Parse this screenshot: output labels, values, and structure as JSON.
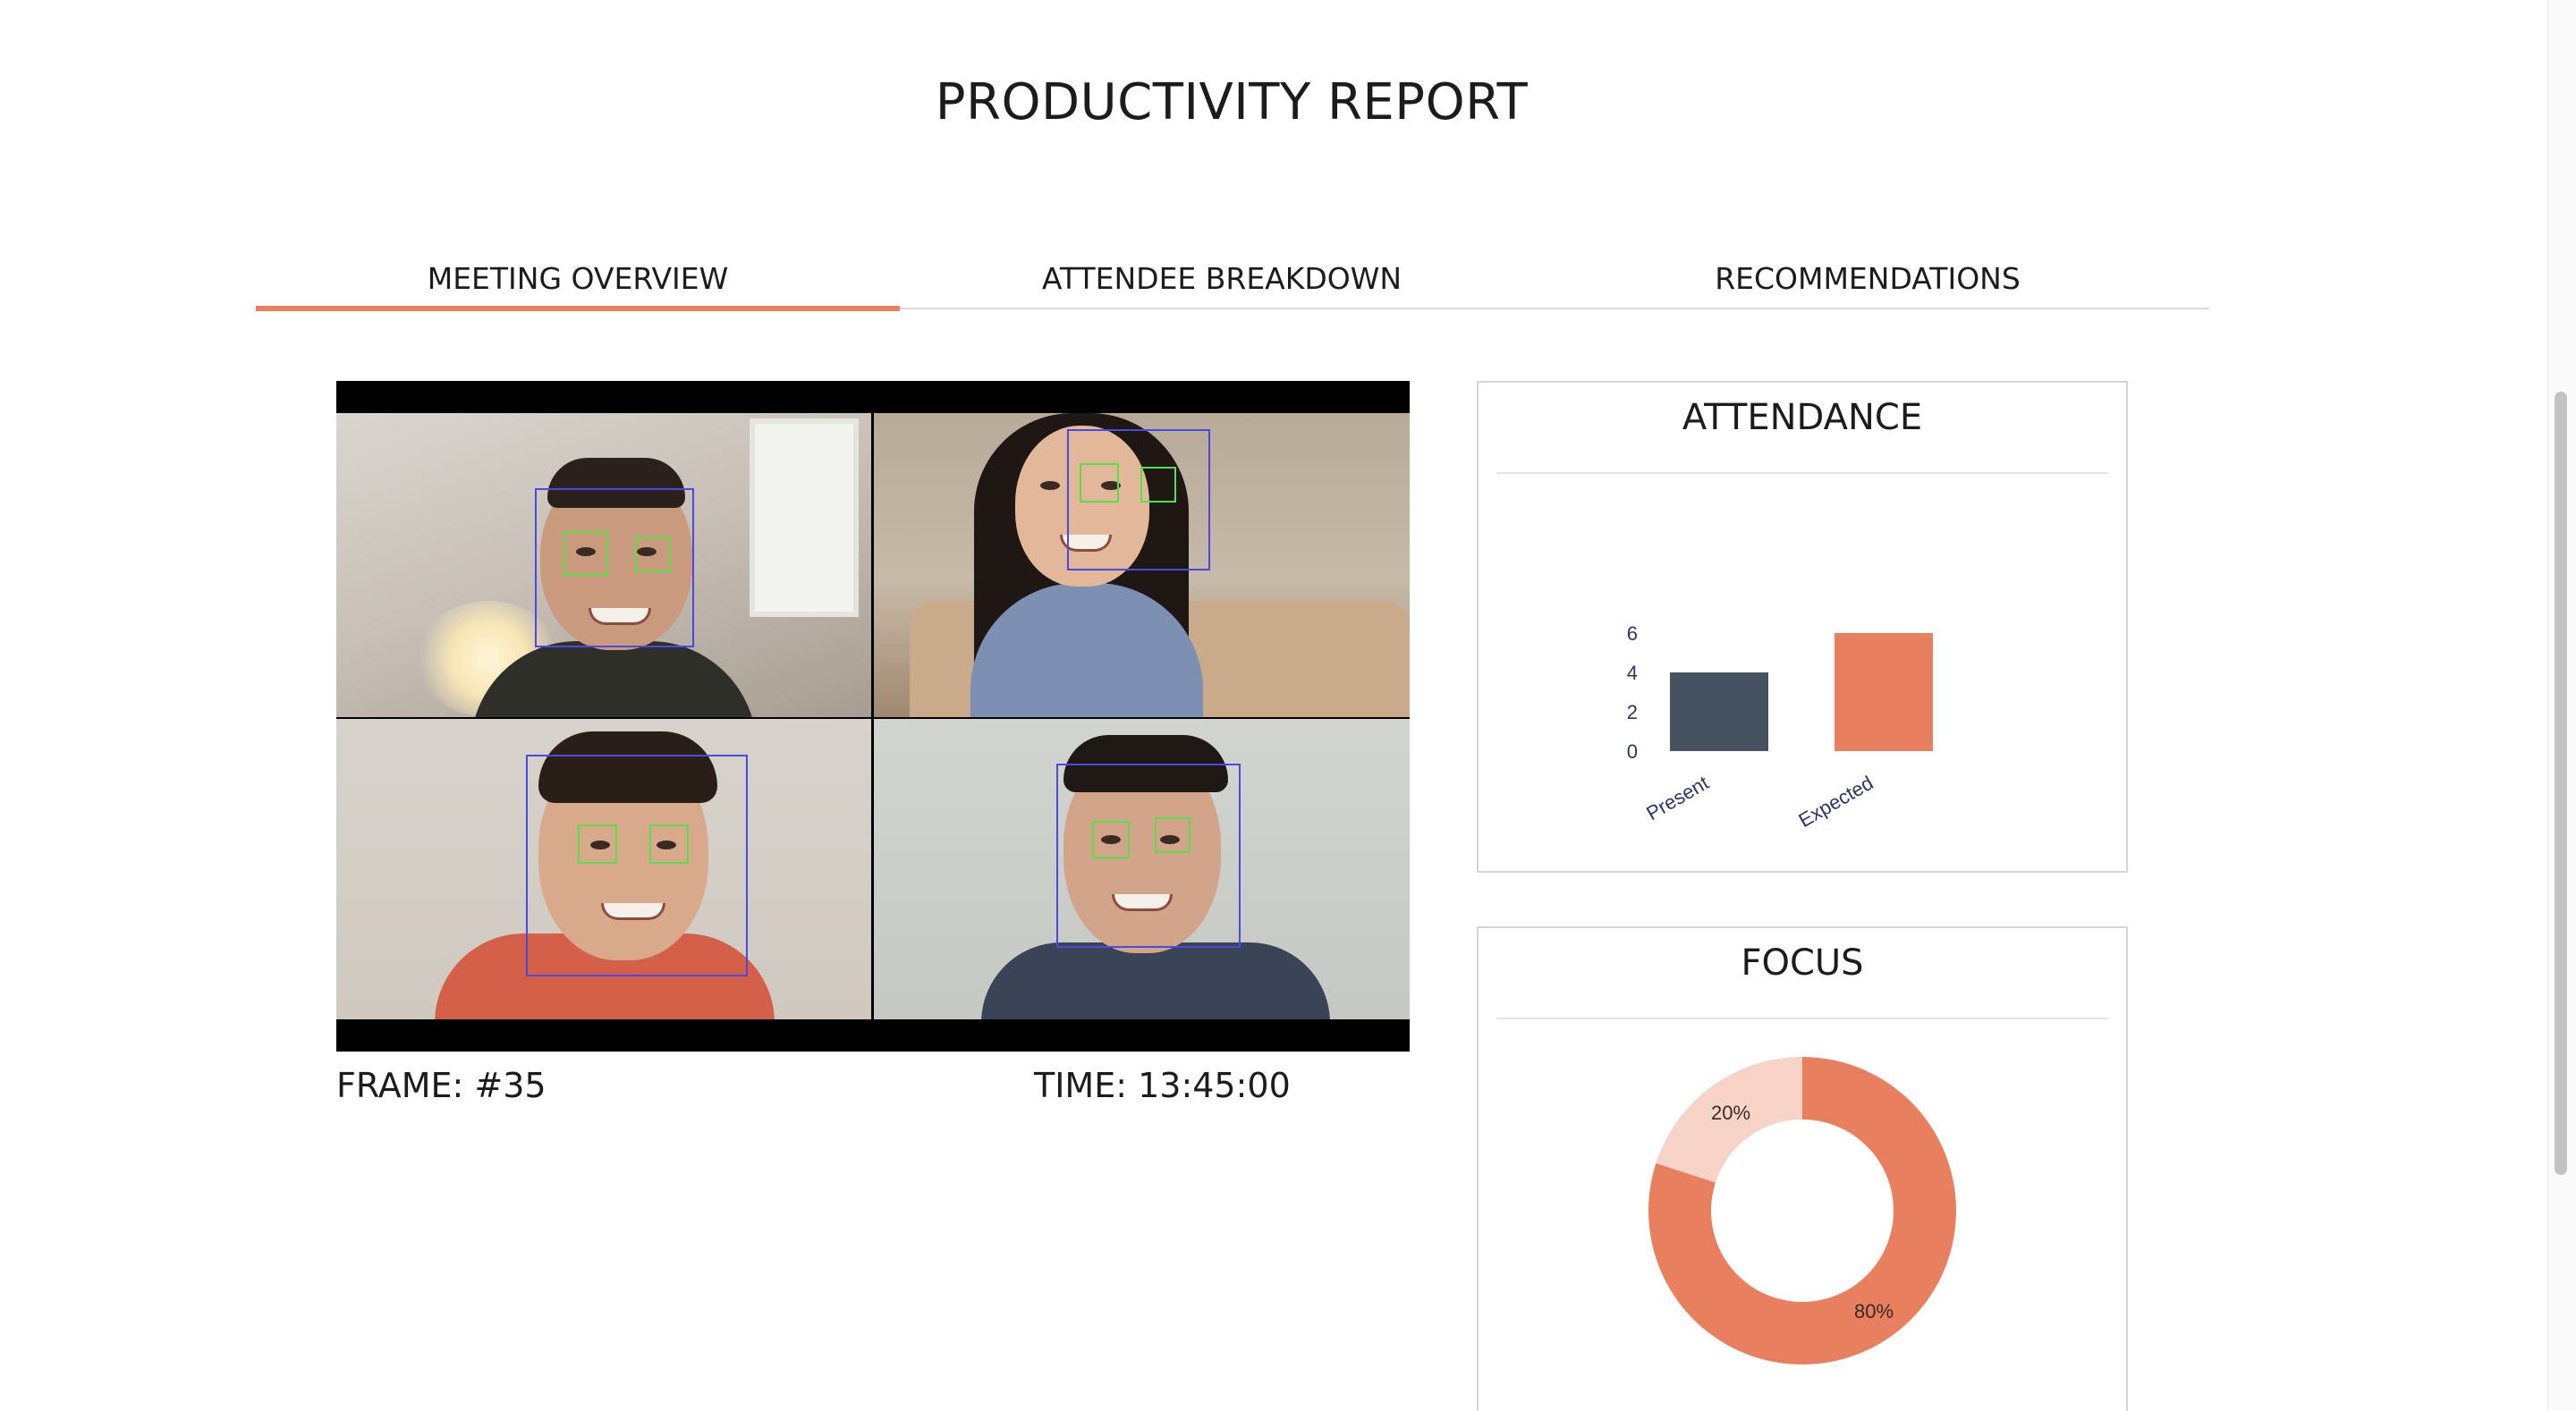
{
  "report": {
    "title": "PRODUCTIVITY REPORT"
  },
  "tabs": [
    {
      "label": "MEETING OVERVIEW",
      "active": true
    },
    {
      "label": "ATTENDEE BREAKDOWN",
      "active": false
    },
    {
      "label": "RECOMMENDATIONS",
      "active": false
    }
  ],
  "video": {
    "frame_label": "FRAME: #35",
    "time_label": "TIME: 13:45:00",
    "participants": 4
  },
  "attendance": {
    "title": "ATTENDANCE"
  },
  "focus": {
    "title": "FOCUS"
  },
  "colors": {
    "accent": "#e8805f",
    "accent_light": "#f7d3c8",
    "present_bar": "#475260",
    "face_box": "#4a4ae0",
    "eye_box": "#58e04a"
  },
  "chart_data": [
    {
      "type": "bar",
      "title": "ATTENDANCE",
      "categories": [
        "Present",
        "Expected"
      ],
      "values": [
        4,
        6
      ],
      "colors": [
        "#475260",
        "#e8805f"
      ],
      "yticks": [
        0,
        2,
        4,
        6
      ],
      "ylim": [
        0,
        6
      ],
      "xlabel": "",
      "ylabel": "",
      "grid": false
    },
    {
      "type": "pie",
      "title": "FOCUS",
      "donut": true,
      "labels": [
        "20%",
        "80%"
      ],
      "values": [
        20,
        80
      ],
      "colors": [
        "#f7d3c8",
        "#e8805f"
      ]
    }
  ]
}
